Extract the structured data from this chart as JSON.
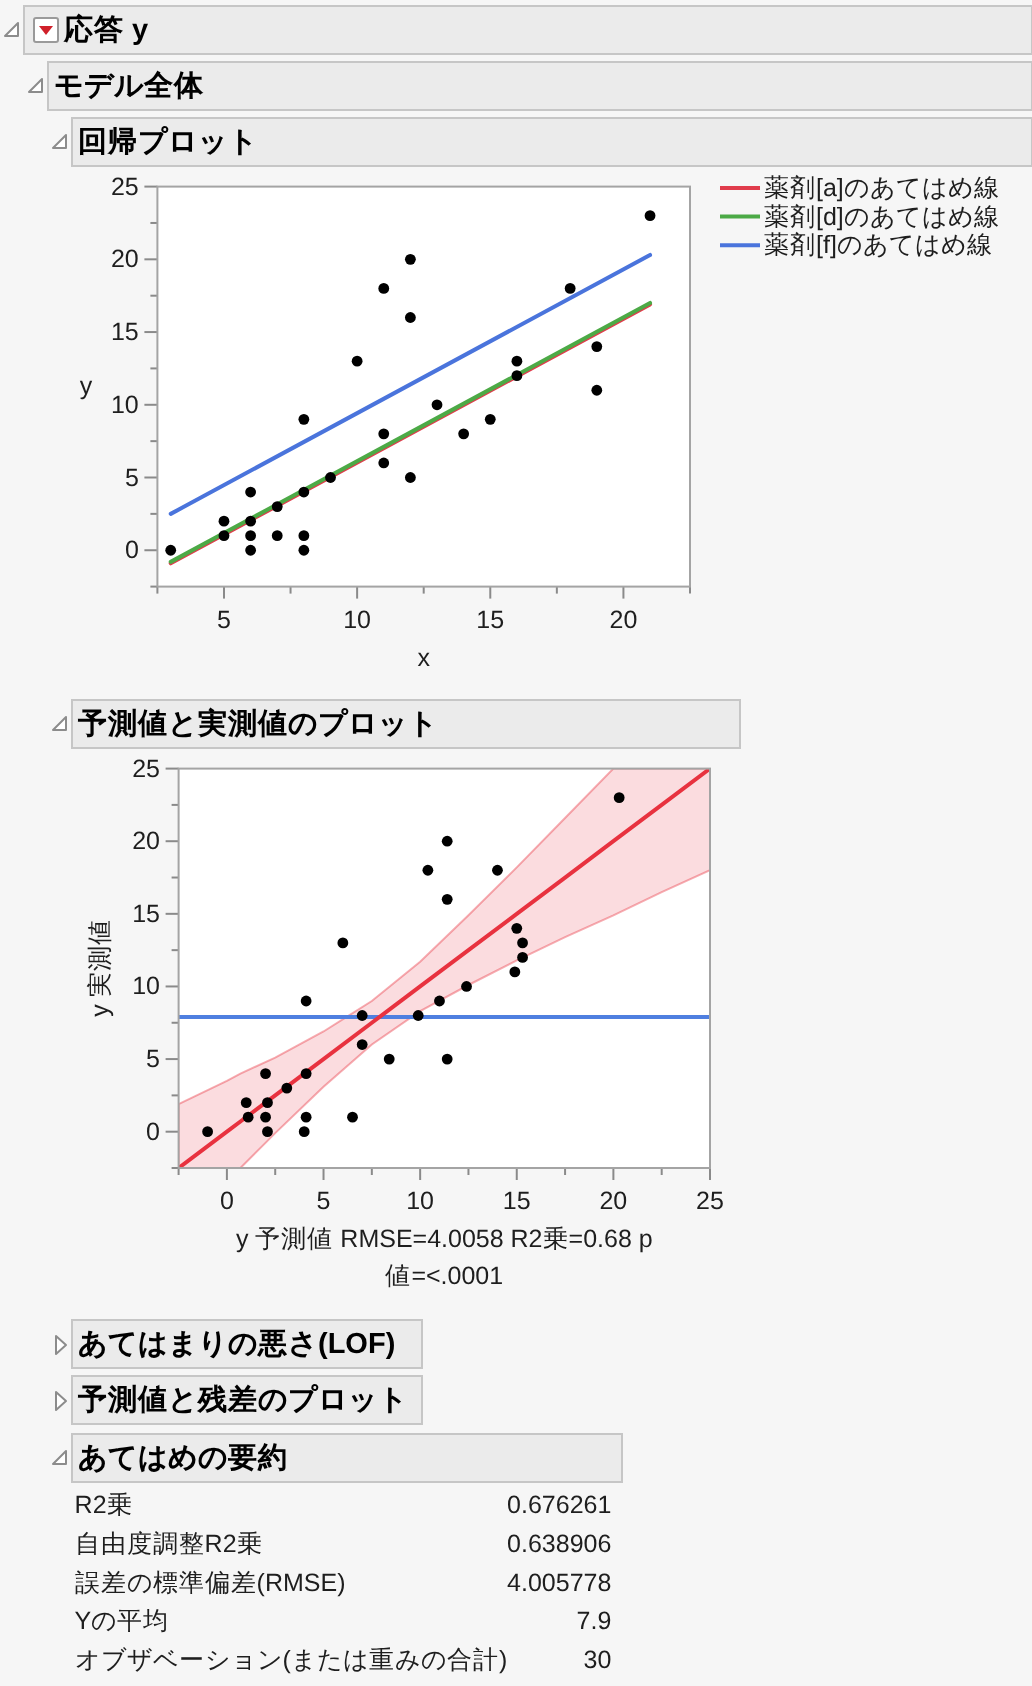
{
  "chart_data": [
    {
      "type": "scatter",
      "title": "回帰プロット",
      "annotations": [
        "応答 y",
        "モデル全体"
      ],
      "xlabel": "x",
      "ylabel": "y",
      "xlim": [
        2.5,
        22.5
      ],
      "ylim": [
        -2.5,
        25
      ],
      "xticks": [
        {
          "value": 2.5,
          "label": null
        },
        5,
        {
          "value": 7.5,
          "label": null
        },
        10,
        {
          "value": 12.5,
          "label": null
        },
        15,
        {
          "value": 17.5,
          "label": null
        },
        20,
        {
          "value": 22.5,
          "label": null
        }
      ],
      "yticks": [
        {
          "value": -2.5,
          "label": null
        },
        0,
        {
          "value": 2.5,
          "label": null
        },
        5,
        {
          "value": 7.5,
          "label": null
        },
        10,
        {
          "value": 12.5,
          "label": null
        },
        15,
        {
          "value": 17.5,
          "label": null
        },
        20,
        {
          "value": 22.5,
          "label": null
        },
        25
      ],
      "legend": "right",
      "series": [
        {
          "type": "scatter",
          "marker": "circle",
          "color": "#000000",
          "x": [
            3,
            5,
            5,
            6,
            6,
            6,
            6,
            7,
            7,
            8,
            8,
            8,
            8,
            9,
            10,
            11,
            11,
            11,
            12,
            12,
            12,
            13,
            14,
            15,
            16,
            16,
            18,
            19,
            19,
            21
          ],
          "values": [
            0,
            2,
            1,
            4,
            2,
            1,
            0,
            3,
            1,
            9,
            4,
            1,
            0,
            5,
            13,
            18,
            8,
            6,
            20,
            16,
            5,
            10,
            8,
            9,
            13,
            12,
            18,
            14,
            11,
            23
          ]
        },
        {
          "name": "薬剤[a]のあてはめ線",
          "type": "line",
          "marker": "none",
          "color": "#e03c4c",
          "x": [
            3,
            21
          ],
          "values": [
            -0.9,
            16.9
          ]
        },
        {
          "name": "薬剤[d]のあてはめ線",
          "type": "line",
          "marker": "none",
          "color": "#4caa46",
          "x": [
            3,
            21
          ],
          "values": [
            -0.8,
            17.0
          ]
        },
        {
          "name": "薬剤[f]のあてはめ線",
          "type": "line",
          "marker": "none",
          "color": "#4a74dc",
          "x": [
            3,
            21
          ],
          "values": [
            2.5,
            20.3
          ]
        }
      ]
    },
    {
      "type": "scatter",
      "title": "予測値と実測値のプロット",
      "xlabel": "y 予測値 RMSE=4.0058 R2乗=0.68 p値=<.0001",
      "ylabel": "y 実測値",
      "xlim": [
        -2.5,
        25
      ],
      "ylim": [
        -2.5,
        25
      ],
      "xticks": [
        {
          "value": -2.5,
          "label": null
        },
        0,
        {
          "value": 2.5,
          "label": null
        },
        5,
        {
          "value": 7.5,
          "label": null
        },
        10,
        {
          "value": 12.5,
          "label": null
        },
        15,
        {
          "value": 17.5,
          "label": null
        },
        20,
        {
          "value": 22.5,
          "label": null
        },
        25
      ],
      "yticks": [
        {
          "value": -2.5,
          "label": null
        },
        0,
        {
          "value": 2.5,
          "label": null
        },
        5,
        {
          "value": 7.5,
          "label": null
        },
        10,
        {
          "value": 12.5,
          "label": null
        },
        15,
        {
          "value": 17.5,
          "label": null
        },
        20,
        {
          "value": 22.5,
          "label": null
        },
        25
      ],
      "series": [
        {
          "type": "scatter",
          "marker": "circle",
          "color": "#000000",
          "x": [
            -1.0,
            1.0,
            1.1,
            2.0,
            2.1,
            2.0,
            2.1,
            3.1,
            4.1,
            4.1,
            4.1,
            4.0,
            6.0,
            6.5,
            7.0,
            7.0,
            8.4,
            9.9,
            10.4,
            11.0,
            11.4,
            11.4,
            11.4,
            12.4,
            14.0,
            15.0,
            14.9,
            15.3,
            15.3,
            20.3
          ],
          "values": [
            0,
            2,
            1,
            4,
            2,
            1,
            0,
            3,
            9,
            4,
            1,
            0,
            13,
            1,
            8,
            6,
            5,
            8,
            18,
            9,
            20,
            16,
            5,
            10,
            18,
            14,
            11,
            13,
            12,
            23
          ]
        },
        {
          "type": "line",
          "marker": "none",
          "color": "#e8323f",
          "x": [
            -2.5,
            0,
            0.7,
            2.5,
            5,
            7.5,
            10,
            12.5,
            15,
            17.5,
            20,
            22.5,
            25
          ],
          "values": [
            -2.5,
            0,
            0.7,
            2.5,
            5,
            7.5,
            10,
            12.5,
            15,
            17.5,
            20,
            22.5,
            25
          ],
          "lower": [
            -2.5,
            -2.5,
            -2.5,
            -0.1,
            3.1,
            6.0,
            8.3,
            10.1,
            11.8,
            13.4,
            14.9,
            16.5,
            18.0
          ],
          "upper": [
            1.9,
            3.5,
            4.0,
            5.1,
            6.9,
            9.0,
            11.7,
            14.9,
            18.2,
            21.6,
            25,
            25,
            25
          ]
        }
      ],
      "ref_lines": [
        {
          "axis": "y",
          "value": 7.9,
          "color": "#4f7fe0"
        }
      ]
    },
    {
      "type": "other",
      "title": "あてはめの要約",
      "annotations": [
        "あてはまりの悪さ(LOF)",
        "予測値と残差のプロット"
      ],
      "categories": [
        "R2乗",
        "自由度調整R2乗",
        "誤差の標準偏差(RMSE)",
        "Yの平均",
        "オブザベーション(または重みの合計)"
      ],
      "values": [
        0.676261,
        0.638906,
        4.005778,
        7.9,
        30
      ],
      "data_labels": true
    }
  ]
}
